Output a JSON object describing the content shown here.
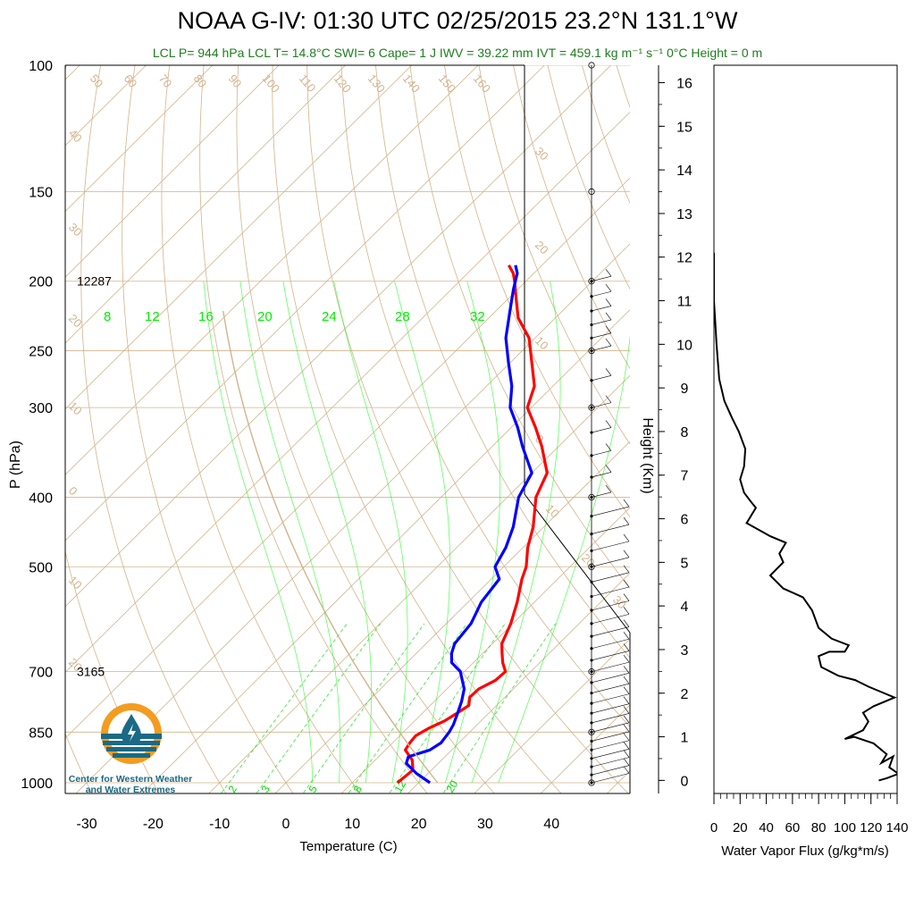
{
  "title": "NOAA G-IV: 01:30 UTC 02/25/2015  23.2°N 131.1°W",
  "subtitle": "LCL P= 944 hPa  LCL T= 14.8°C  SWI= 6  Cape= 1 J  IWV = 39.22 mm  IVT = 459.1 kg m⁻¹ s⁻¹  0°C Height = 0 m",
  "logo_text": "Center for Western Weather and Water Extremes",
  "colors": {
    "temperature": "#ff0000",
    "dewpoint": "#0000ff",
    "dry_adiabat": "#d2b48c",
    "isotherm": "#d2b48c",
    "moist_adiabat": "#00ff00",
    "mixing_ratio": "#00dd00",
    "subtitle": "#1e7d1e",
    "logo_orange": "#f39c1f",
    "logo_blue": "#1a6a86"
  },
  "chart_data": [
    {
      "type": "skew-t",
      "xlabel": "Temperature (C)",
      "ylabel": "P (hPa)",
      "x_ticks": [
        -30,
        -20,
        -10,
        0,
        10,
        20,
        30,
        40
      ],
      "y_ticks": [
        100,
        150,
        200,
        250,
        300,
        400,
        500,
        700,
        850,
        1000
      ],
      "y_scale": "log",
      "ylim": [
        1050,
        100
      ],
      "height_annotations": [
        {
          "pressure": 200,
          "label": "12287"
        },
        {
          "pressure": 700,
          "label": "3165"
        }
      ],
      "dry_adiabat_labels": [
        "50",
        "60",
        "70",
        "80",
        "90",
        "100",
        "110",
        "120",
        "130",
        "140",
        "150",
        "160"
      ],
      "isotherm_labels": [
        "40",
        "30",
        "20",
        "10",
        "0",
        "10",
        "20",
        "30",
        "20",
        "10",
        "0",
        "10",
        "20",
        "30"
      ],
      "moist_adiabat_labels": [
        "8",
        "12",
        "16",
        "20",
        "24",
        "28",
        "32"
      ],
      "mixing_ratio_labels": [
        "2",
        "3",
        "5",
        "8",
        "12",
        "20"
      ],
      "series": [
        {
          "name": "Temperature",
          "points": [
            [
              1000,
              16.8
            ],
            [
              960,
              17.2
            ],
            [
              930,
              15.6
            ],
            [
              900,
              13.0
            ],
            [
              880,
              12.6
            ],
            [
              860,
              12.4
            ],
            [
              840,
              13.2
            ],
            [
              820,
              14.5
            ],
            [
              800,
              15.2
            ],
            [
              780,
              15.8
            ],
            [
              760,
              14.7
            ],
            [
              740,
              14.8
            ],
            [
              720,
              16.0
            ],
            [
              700,
              16.2
            ],
            [
              680,
              14.4
            ],
            [
              660,
              12.9
            ],
            [
              640,
              11.4
            ],
            [
              600,
              9.7
            ],
            [
              560,
              7.4
            ],
            [
              520,
              4.6
            ],
            [
              500,
              3.4
            ],
            [
              470,
              0.7
            ],
            [
              440,
              -1.6
            ],
            [
              400,
              -5.7
            ],
            [
              370,
              -7.7
            ],
            [
              340,
              -12.5
            ],
            [
              320,
              -16.3
            ],
            [
              300,
              -20.6
            ],
            [
              280,
              -22.8
            ],
            [
              260,
              -26.7
            ],
            [
              240,
              -30.9
            ],
            [
              225,
              -35.6
            ],
            [
              212,
              -38.7
            ],
            [
              200,
              -41.7
            ],
            [
              195,
              -43.1
            ],
            [
              190,
              -45.0
            ]
          ]
        },
        {
          "name": "Dewpoint",
          "points": [
            [
              1000,
              21.7
            ],
            [
              970,
              18.2
            ],
            [
              940,
              15.2
            ],
            [
              920,
              14.5
            ],
            [
              900,
              16.7
            ],
            [
              880,
              17.3
            ],
            [
              850,
              16.9
            ],
            [
              830,
              16.4
            ],
            [
              800,
              15.3
            ],
            [
              770,
              14.1
            ],
            [
              740,
              12.6
            ],
            [
              700,
              9.4
            ],
            [
              680,
              6.7
            ],
            [
              660,
              5.3
            ],
            [
              640,
              4.3
            ],
            [
              600,
              3.7
            ],
            [
              560,
              2.0
            ],
            [
              520,
              1.2
            ],
            [
              500,
              -1.3
            ],
            [
              470,
              -2.6
            ],
            [
              440,
              -4.6
            ],
            [
              400,
              -8.3
            ],
            [
              370,
              -10.0
            ],
            [
              340,
              -15.4
            ],
            [
              320,
              -19.0
            ],
            [
              300,
              -23.2
            ],
            [
              280,
              -26.2
            ],
            [
              260,
              -30.2
            ],
            [
              240,
              -34.4
            ],
            [
              220,
              -37.9
            ],
            [
              205,
              -40.7
            ],
            [
              195,
              -42.5
            ],
            [
              190,
              -44.0
            ]
          ]
        }
      ]
    },
    {
      "type": "line",
      "xlabel": "Water Vapor Flux (g/kg*m/s)",
      "ylabel": "Height (Km)",
      "x_ticks": [
        0,
        20,
        40,
        60,
        80,
        100,
        120,
        140
      ],
      "y_ticks": [
        0,
        1,
        2,
        3,
        4,
        5,
        6,
        7,
        8,
        9,
        10,
        11,
        12,
        13,
        14,
        15,
        16
      ],
      "xlim": [
        0,
        140
      ],
      "ylim": [
        -0.3,
        16.4
      ],
      "series": [
        {
          "name": "Water Vapor Flux",
          "points": [
            [
              0,
              12.1
            ],
            [
              0,
              11.0
            ],
            [
              1,
              10.5
            ],
            [
              2,
              10.0
            ],
            [
              4,
              9.2
            ],
            [
              8,
              8.7
            ],
            [
              14,
              8.3
            ],
            [
              19,
              8.0
            ],
            [
              24,
              7.6
            ],
            [
              23,
              7.2
            ],
            [
              20,
              6.9
            ],
            [
              23,
              6.6
            ],
            [
              28,
              6.4
            ],
            [
              32,
              6.25
            ],
            [
              25,
              5.9
            ],
            [
              43,
              5.6
            ],
            [
              55,
              5.45
            ],
            [
              50,
              5.2
            ],
            [
              53,
              5.0
            ],
            [
              43,
              4.7
            ],
            [
              53,
              4.4
            ],
            [
              68,
              4.2
            ],
            [
              75,
              3.9
            ],
            [
              80,
              3.5
            ],
            [
              90,
              3.25
            ],
            [
              103,
              3.1
            ],
            [
              100,
              2.95
            ],
            [
              88,
              2.95
            ],
            [
              80,
              2.85
            ],
            [
              82,
              2.6
            ],
            [
              95,
              2.4
            ],
            [
              108,
              2.3
            ],
            [
              118,
              2.15
            ],
            [
              138,
              1.9
            ],
            [
              122,
              1.7
            ],
            [
              114,
              1.55
            ],
            [
              118,
              1.35
            ],
            [
              114,
              1.15
            ],
            [
              100,
              0.95
            ],
            [
              107,
              1.0
            ],
            [
              122,
              0.85
            ],
            [
              132,
              0.6
            ],
            [
              128,
              0.4
            ],
            [
              137,
              0.55
            ],
            [
              134,
              0.3
            ],
            [
              141,
              0.15
            ],
            [
              132,
              0.05
            ],
            [
              126,
              0.0
            ]
          ]
        }
      ]
    }
  ]
}
